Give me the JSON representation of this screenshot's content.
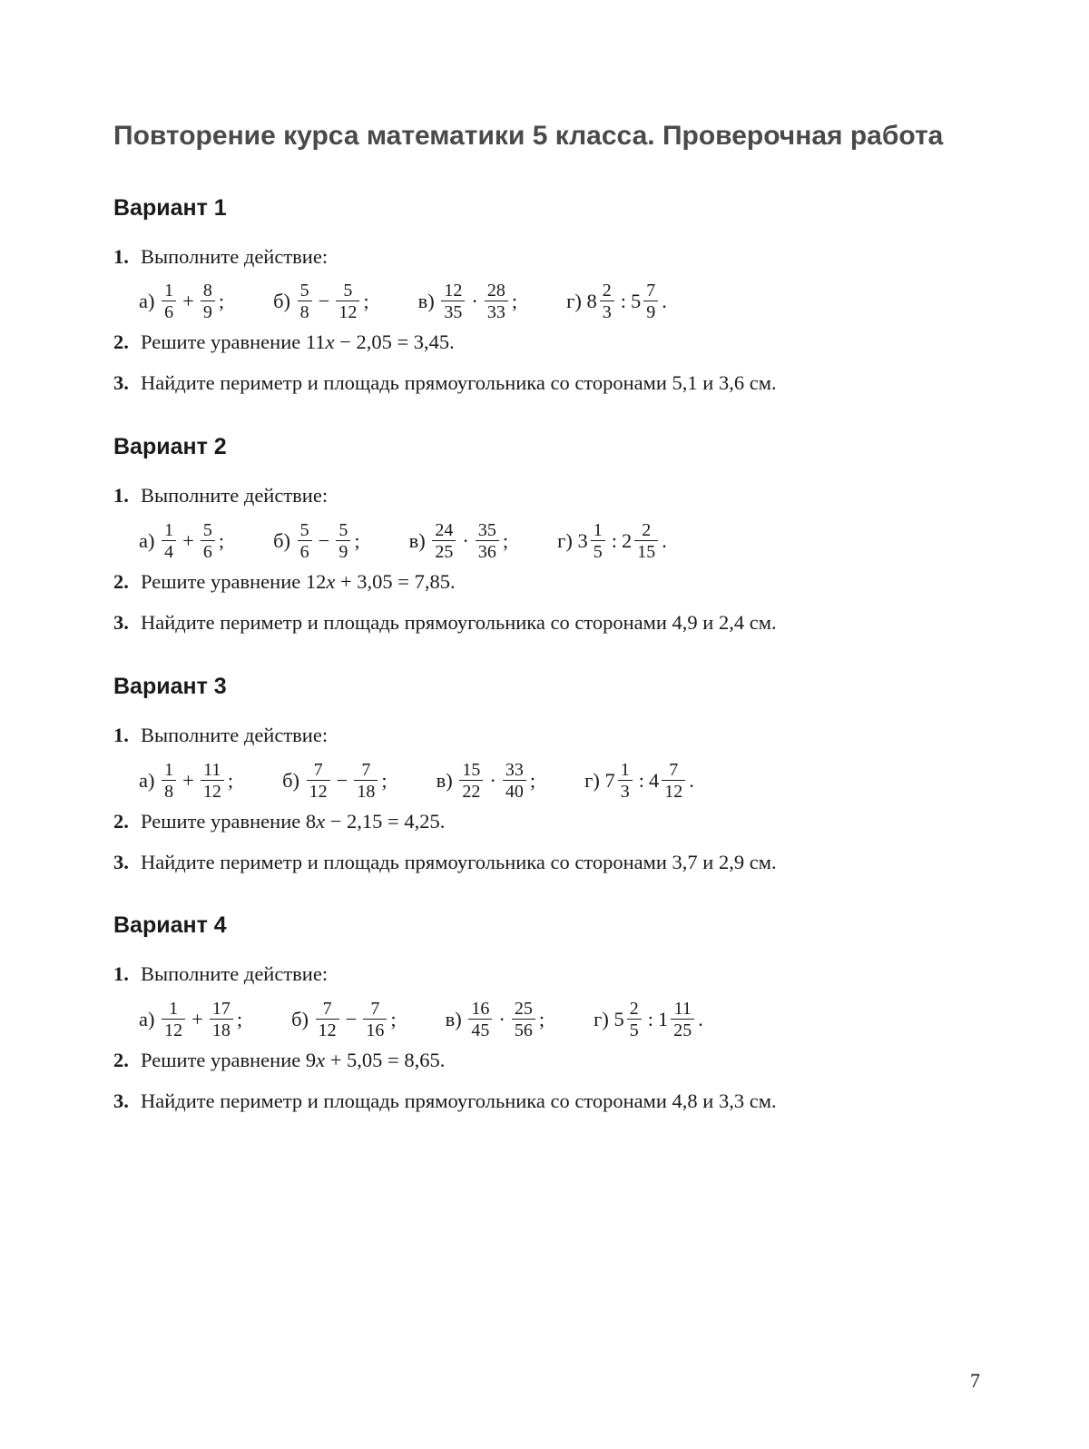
{
  "title": "Повторение курса математики 5 класса. Проверочная работа",
  "page_number": "7",
  "labels": {
    "a": "а)",
    "b": "б)",
    "v": "в)",
    "g": "г)"
  },
  "variants": [
    {
      "name": "Вариант 1",
      "p1_text": "Выполните действие:",
      "p1": {
        "a": {
          "f1": {
            "n": "1",
            "d": "6"
          },
          "op": "+",
          "f2": {
            "n": "8",
            "d": "9"
          }
        },
        "b": {
          "f1": {
            "n": "5",
            "d": "8"
          },
          "op": "−",
          "f2": {
            "n": "5",
            "d": "12"
          }
        },
        "v": {
          "f1": {
            "n": "12",
            "d": "35"
          },
          "op": "·",
          "f2": {
            "n": "28",
            "d": "33"
          }
        },
        "g": {
          "m1": {
            "w": "8",
            "n": "2",
            "d": "3"
          },
          "op": ":",
          "m2": {
            "w": "5",
            "n": "7",
            "d": "9"
          }
        }
      },
      "p2": {
        "pre": "Решите уравнение 11",
        "var": "x",
        "post": " − 2,05 = 3,45."
      },
      "p3": "Найдите периметр и площадь прямоугольника со сторонами 5,1 и 3,6 см."
    },
    {
      "name": "Вариант 2",
      "p1_text": "Выполните действие:",
      "p1": {
        "a": {
          "f1": {
            "n": "1",
            "d": "4"
          },
          "op": "+",
          "f2": {
            "n": "5",
            "d": "6"
          }
        },
        "b": {
          "f1": {
            "n": "5",
            "d": "6"
          },
          "op": "−",
          "f2": {
            "n": "5",
            "d": "9"
          }
        },
        "v": {
          "f1": {
            "n": "24",
            "d": "25"
          },
          "op": "·",
          "f2": {
            "n": "35",
            "d": "36"
          }
        },
        "g": {
          "m1": {
            "w": "3",
            "n": "1",
            "d": "5"
          },
          "op": ":",
          "m2": {
            "w": "2",
            "n": "2",
            "d": "15"
          }
        }
      },
      "p2": {
        "pre": "Решите уравнение 12",
        "var": "x",
        "post": " + 3,05 = 7,85."
      },
      "p3": "Найдите периметр и площадь прямоугольника со сторонами 4,9 и 2,4 см."
    },
    {
      "name": "Вариант 3",
      "p1_text": "Выполните действие:",
      "p1": {
        "a": {
          "f1": {
            "n": "1",
            "d": "8"
          },
          "op": "+",
          "f2": {
            "n": "11",
            "d": "12"
          }
        },
        "b": {
          "f1": {
            "n": "7",
            "d": "12"
          },
          "op": "−",
          "f2": {
            "n": "7",
            "d": "18"
          }
        },
        "v": {
          "f1": {
            "n": "15",
            "d": "22"
          },
          "op": "·",
          "f2": {
            "n": "33",
            "d": "40"
          }
        },
        "g": {
          "m1": {
            "w": "7",
            "n": "1",
            "d": "3"
          },
          "op": ":",
          "m2": {
            "w": "4",
            "n": "7",
            "d": "12"
          }
        }
      },
      "p2": {
        "pre": "Решите уравнение 8",
        "var": "x",
        "post": " − 2,15 = 4,25."
      },
      "p3": "Найдите периметр и площадь прямоугольника со сторонами 3,7 и 2,9 см."
    },
    {
      "name": "Вариант 4",
      "p1_text": "Выполните действие:",
      "p1": {
        "a": {
          "f1": {
            "n": "1",
            "d": "12"
          },
          "op": "+",
          "f2": {
            "n": "17",
            "d": "18"
          }
        },
        "b": {
          "f1": {
            "n": "7",
            "d": "12"
          },
          "op": "−",
          "f2": {
            "n": "7",
            "d": "16"
          }
        },
        "v": {
          "f1": {
            "n": "16",
            "d": "45"
          },
          "op": "·",
          "f2": {
            "n": "25",
            "d": "56"
          }
        },
        "g": {
          "m1": {
            "w": "5",
            "n": "2",
            "d": "5"
          },
          "op": ":",
          "m2": {
            "w": "1",
            "n": "11",
            "d": "25"
          }
        }
      },
      "p2": {
        "pre": "Решите уравнение 9",
        "var": "x",
        "post": " + 5,05 = 8,65."
      },
      "p3": "Найдите периметр и площадь прямоугольника со сторонами 4,8 и 3,3 см."
    }
  ]
}
